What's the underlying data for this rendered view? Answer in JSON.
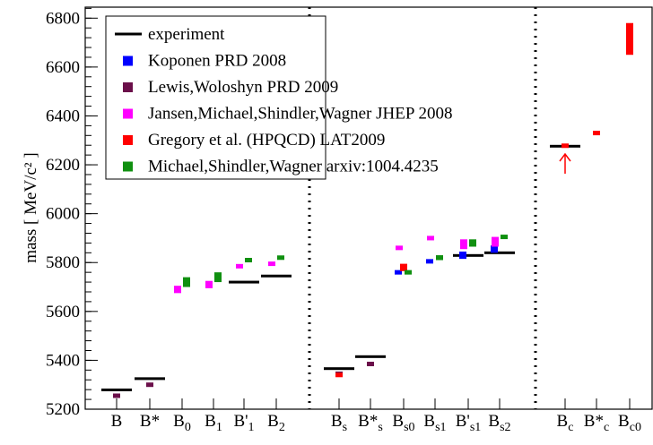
{
  "chart_data": {
    "type": "bar",
    "y_label": "mass [ MeV/c² ]",
    "categories": [
      "B",
      "B*",
      "B",
      "B",
      "B'",
      "B",
      "B",
      "B*",
      "B",
      "B",
      "B'",
      "B",
      "B",
      "B*",
      "B"
    ],
    "subscripts": [
      null,
      null,
      "0",
      "1",
      "1",
      "2",
      "s",
      "s",
      "s0",
      "s1",
      "s1",
      "s2",
      "c",
      "c",
      "c0"
    ],
    "ylim": [
      5200,
      6845
    ],
    "yticks": [
      5200,
      5400,
      5600,
      5800,
      6000,
      6200,
      6400,
      6600,
      6800
    ],
    "series": [
      {
        "name": "experiment",
        "color": "#000000",
        "values": [
          5279,
          5325,
          null,
          null,
          5720,
          5745,
          5366,
          5415,
          null,
          null,
          5829,
          5840,
          6276,
          null,
          null
        ],
        "errors": [
          null,
          null,
          null,
          null,
          null,
          null,
          null,
          null,
          null,
          null,
          null,
          null,
          null,
          null,
          null
        ]
      },
      {
        "name": "Koponen PRD 2008",
        "color": "#0000ff",
        "values": [
          null,
          null,
          null,
          null,
          null,
          null,
          null,
          null,
          5760,
          5805,
          5830,
          5855,
          null,
          null,
          null
        ],
        "errors": [
          null,
          null,
          null,
          null,
          null,
          null,
          null,
          null,
          5,
          5,
          15,
          15,
          null,
          null,
          null
        ]
      },
      {
        "name": "Lewis,Woloshyn PRD 2009",
        "color": "#6b0f4a",
        "values": [
          5255,
          5300,
          null,
          null,
          null,
          null,
          5345,
          5385,
          null,
          null,
          null,
          null,
          null,
          null,
          null
        ],
        "errors": [
          6,
          8,
          null,
          null,
          null,
          null,
          6,
          8,
          null,
          null,
          null,
          null,
          null,
          null,
          null
        ]
      },
      {
        "name": "Jansen,Michael,Shindler,Wagner JHEP 2008",
        "color": "#ff00ff",
        "values": [
          null,
          null,
          5690,
          5710,
          5785,
          5795,
          null,
          null,
          5860,
          5900,
          5875,
          5885,
          null,
          null,
          null
        ],
        "errors": [
          null,
          null,
          15,
          15,
          6,
          6,
          null,
          null,
          6,
          6,
          20,
          20,
          null,
          null,
          null
        ]
      },
      {
        "name": "Gregory et al. (HPQCD) LAT2009",
        "color": "#ff0000",
        "values": [
          null,
          null,
          null,
          null,
          null,
          null,
          5340,
          null,
          5780,
          null,
          null,
          null,
          6278,
          6330,
          6715
        ],
        "errors": [
          null,
          null,
          null,
          null,
          null,
          null,
          6,
          null,
          15,
          null,
          null,
          null,
          3,
          5,
          65
        ]
      },
      {
        "name": "Michael,Shindler,Wagner arxiv:1004.4235",
        "color": "#109010",
        "values": [
          null,
          null,
          5720,
          5740,
          5810,
          5820,
          null,
          null,
          5760,
          5820,
          5880,
          5905,
          null,
          null,
          null
        ],
        "errors": [
          null,
          null,
          20,
          20,
          8,
          8,
          null,
          null,
          5,
          10,
          15,
          6,
          null,
          null,
          null
        ]
      }
    ]
  }
}
